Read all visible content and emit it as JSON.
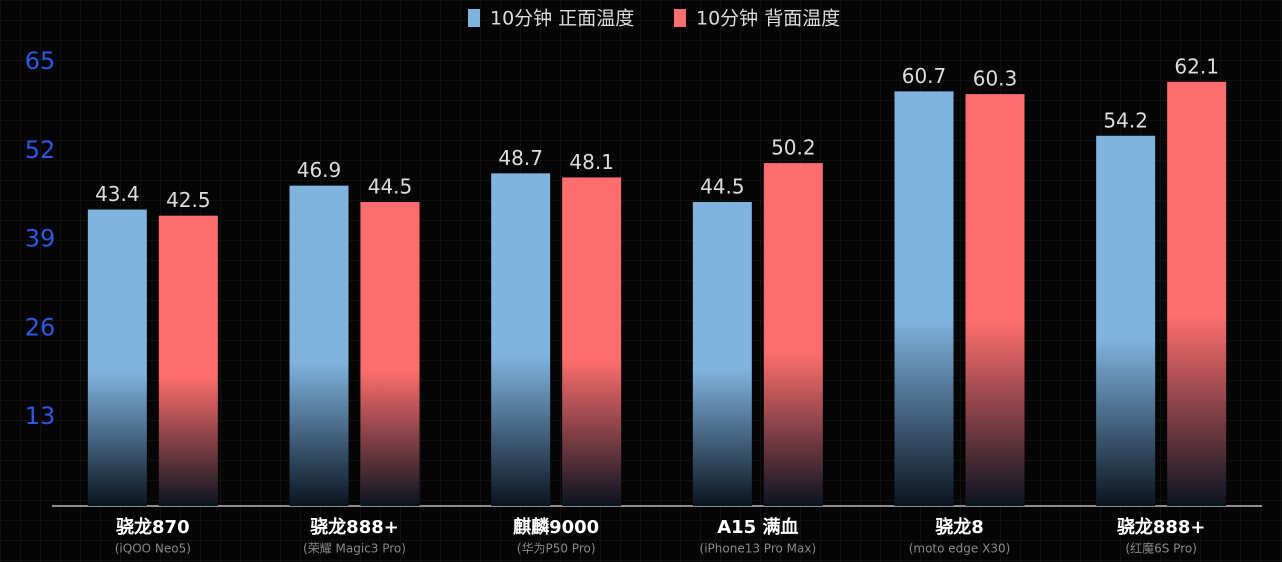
{
  "chart_data": {
    "type": "bar",
    "categories": [
      "骁龙870",
      "骁龙888+",
      "麒麟9000",
      "A15 满血",
      "骁龙8",
      "骁龙888+"
    ],
    "category_sublabels": [
      "(iQOO Neo5)",
      "(荣耀 Magic3 Pro)",
      "(华为P50 Pro)",
      "(iPhone13 Pro Max)",
      "(moto edge X30)",
      "(红魔6S Pro)"
    ],
    "series": [
      {
        "name": "10分钟 正面温度",
        "color": "#80b3de",
        "values": [
          43.4,
          46.9,
          48.7,
          44.5,
          60.7,
          54.2
        ]
      },
      {
        "name": "10分钟 背面温度",
        "color": "#ff6e6e",
        "values": [
          42.5,
          44.5,
          48.1,
          50.2,
          60.3,
          62.1
        ]
      }
    ],
    "ylim": [
      0,
      65
    ],
    "yticks": [
      13,
      26,
      39,
      52,
      65
    ],
    "legend": "top"
  }
}
